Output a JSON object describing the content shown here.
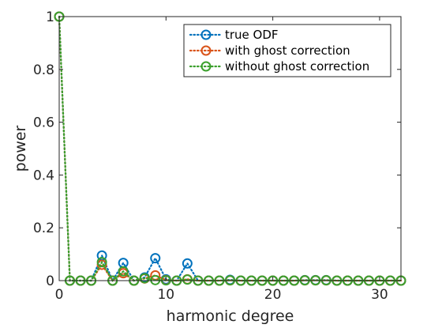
{
  "chart_data": {
    "type": "line",
    "title": "",
    "xlabel": "harmonic degree",
    "ylabel": "power",
    "xlim": [
      0,
      32
    ],
    "ylim": [
      0,
      1
    ],
    "xticks": [
      0,
      10,
      20,
      30
    ],
    "yticks": [
      0,
      0.2,
      0.4,
      0.6,
      0.8,
      1
    ],
    "ytick_labels": [
      "0",
      "0.2",
      "0.4",
      "0.6",
      "0.8",
      "1"
    ],
    "grid": false,
    "legend_position": "top-right",
    "x": [
      0,
      1,
      2,
      3,
      4,
      5,
      6,
      7,
      8,
      9,
      10,
      11,
      12,
      13,
      14,
      15,
      16,
      17,
      18,
      19,
      20,
      21,
      22,
      23,
      24,
      25,
      26,
      27,
      28,
      29,
      30,
      31,
      32
    ],
    "series": [
      {
        "name": "true ODF",
        "color": "#0072BD",
        "values": [
          1,
          0,
          0,
          0,
          0.095,
          0,
          0.067,
          0,
          0.012,
          0.085,
          0.005,
          0,
          0.065,
          0,
          0,
          0,
          0.003,
          0,
          0,
          0,
          0,
          0,
          0,
          0.002,
          0.002,
          0.002,
          0,
          0,
          0,
          0,
          0,
          0,
          0
        ]
      },
      {
        "name": "with ghost correction",
        "color": "#D95319",
        "values": [
          1,
          0,
          0,
          0,
          0.06,
          0,
          0.028,
          0,
          0.008,
          0.02,
          0.002,
          0,
          0.005,
          0,
          0,
          0,
          0.001,
          0,
          0,
          0,
          0,
          0,
          0,
          0.001,
          0.001,
          0.001,
          0,
          0,
          0,
          0,
          0,
          0,
          0
        ]
      },
      {
        "name": "without ghost correction",
        "color": "#3CA02D",
        "values": [
          1,
          0,
          0,
          0,
          0.07,
          0,
          0.035,
          0,
          0.009,
          0.002,
          0.001,
          0,
          0.004,
          0,
          0,
          0,
          0.001,
          0,
          0,
          0,
          0,
          0,
          0,
          0.001,
          0.001,
          0.001,
          0,
          0,
          0,
          0,
          0,
          0,
          0
        ]
      }
    ]
  }
}
